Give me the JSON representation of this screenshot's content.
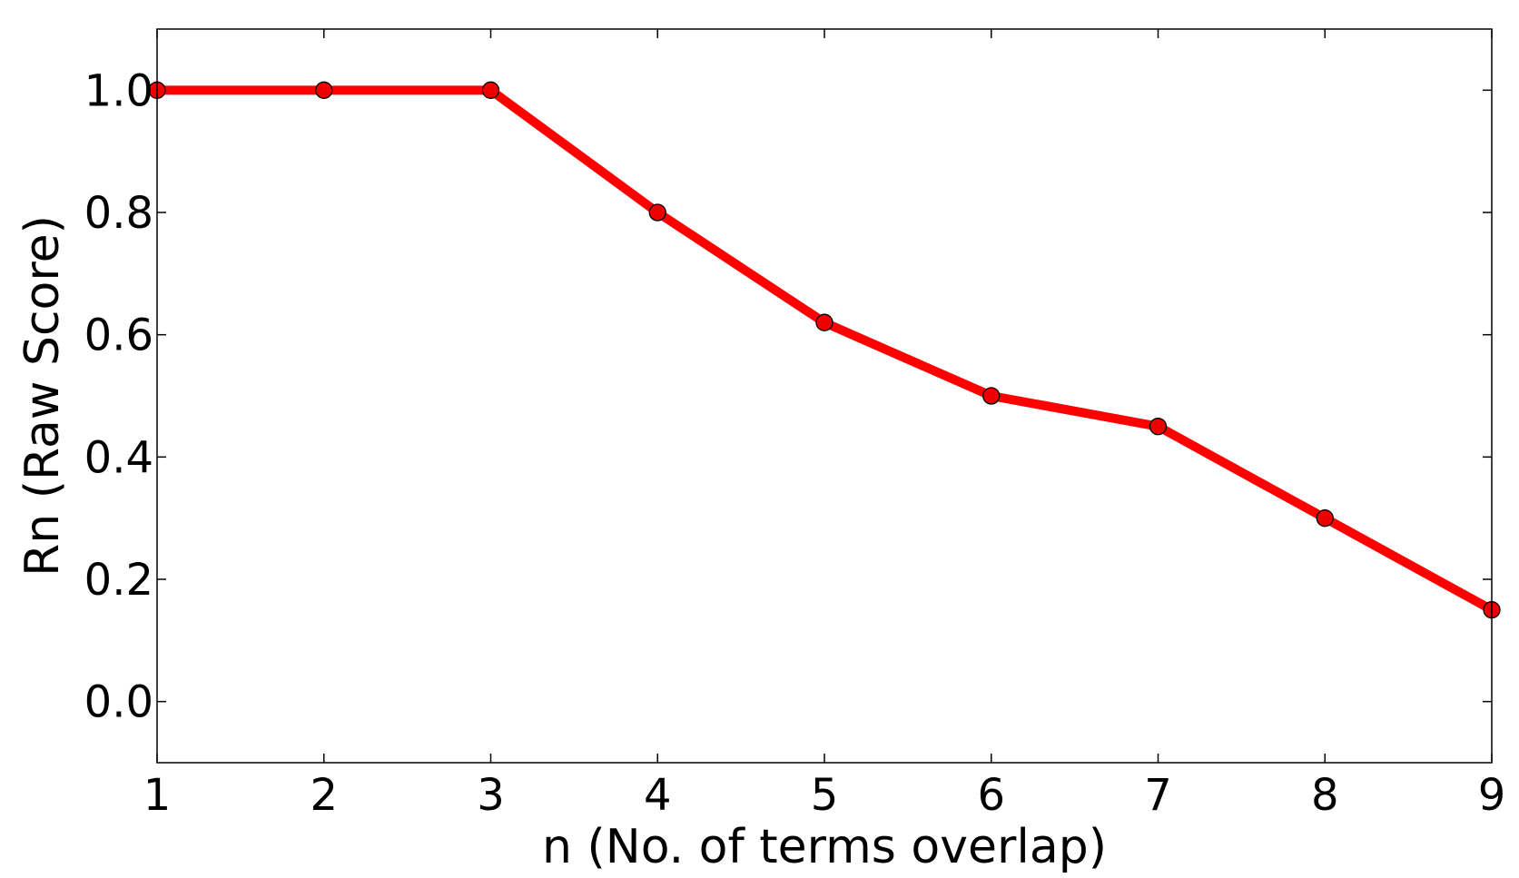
{
  "chart_data": {
    "type": "line",
    "title": "",
    "xlabel": "n (No. of terms overlap)",
    "ylabel": "Rn (Raw Score)",
    "x": [
      1,
      2,
      3,
      4,
      5,
      6,
      7,
      8,
      9
    ],
    "series": [
      {
        "values": [
          1.0,
          1.0,
          1.0,
          0.8,
          0.62,
          0.5,
          0.45,
          0.3,
          0.15
        ],
        "color": "#ff0000",
        "marker_color": "#ee0000",
        "marker": "circle"
      }
    ],
    "xlim": [
      1,
      9
    ],
    "ylim": [
      -0.1,
      1.1
    ],
    "xticks": [
      1,
      2,
      3,
      4,
      5,
      6,
      7,
      8,
      9
    ],
    "xtick_labels": [
      "1",
      "2",
      "3",
      "4",
      "5",
      "6",
      "7",
      "8",
      "9"
    ],
    "yticks": [
      0.0,
      0.2,
      0.4,
      0.6,
      0.8,
      1.0
    ],
    "ytick_labels": [
      "0.0",
      "0.2",
      "0.4",
      "0.6",
      "0.8",
      "1.0"
    ],
    "grid": false,
    "legend": "none"
  }
}
